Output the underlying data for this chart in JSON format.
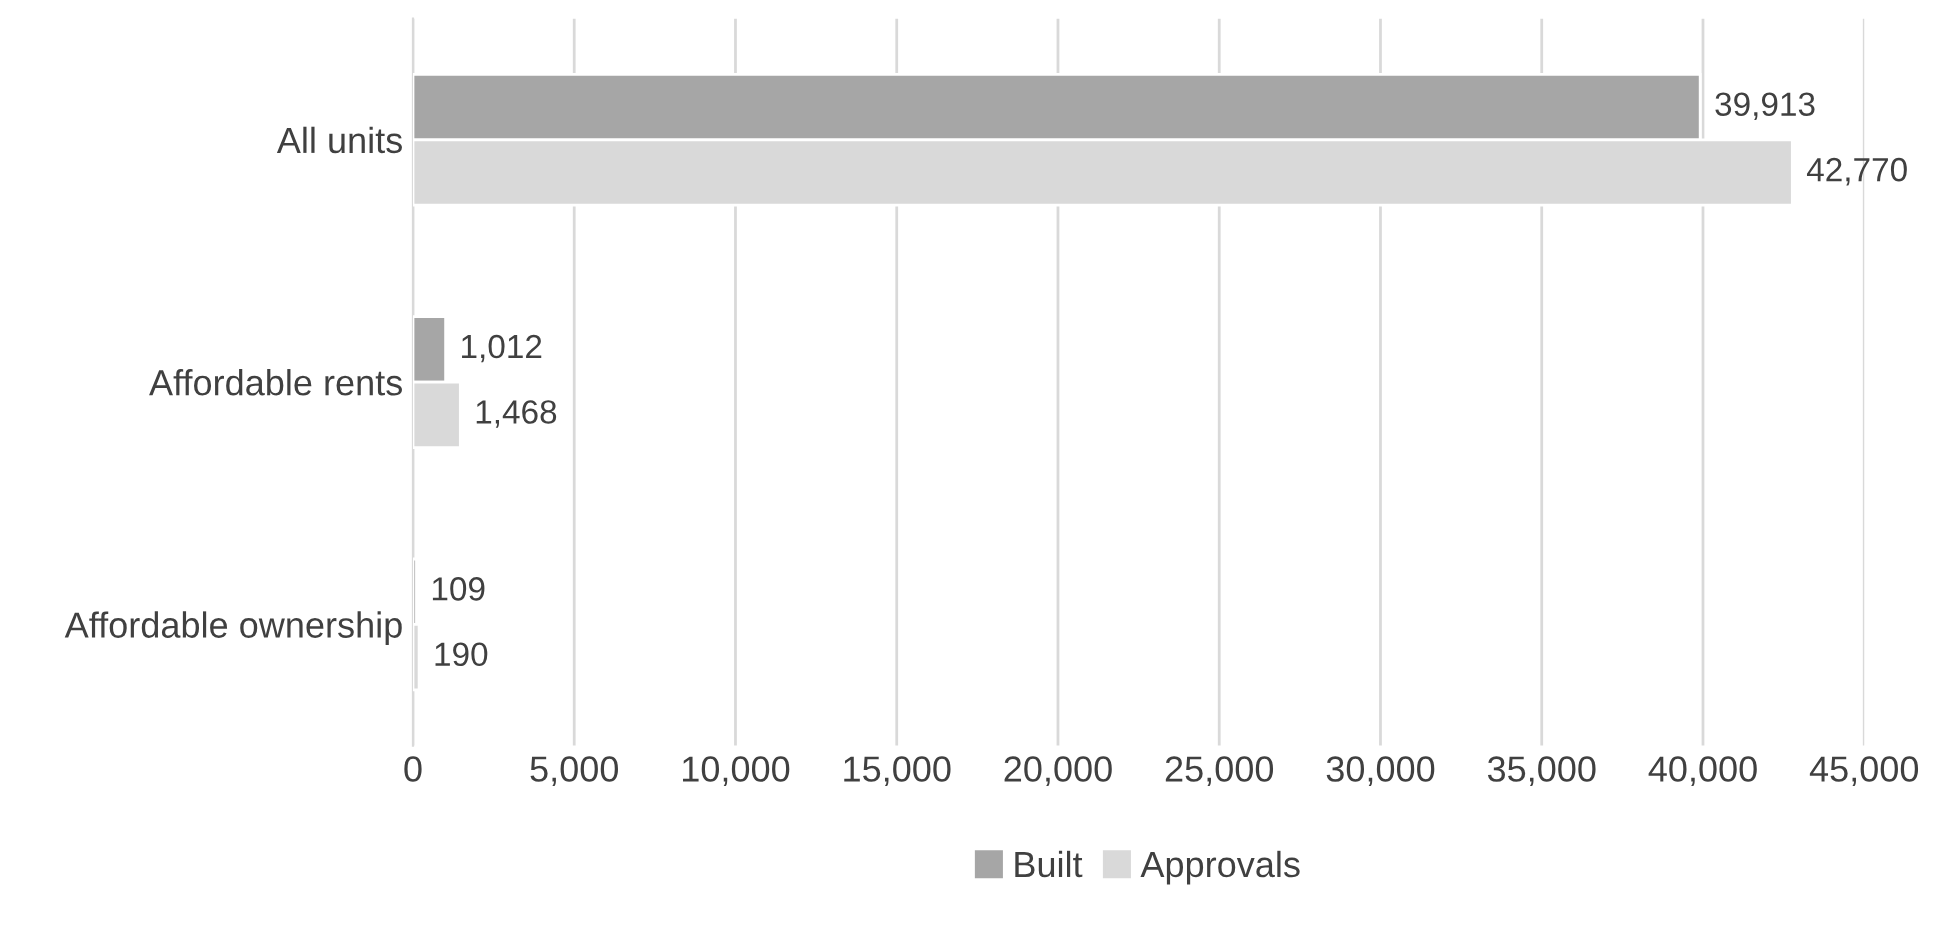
{
  "chart_data": {
    "type": "bar",
    "orientation": "horizontal",
    "categories": [
      "All units",
      "Affordable rents",
      "Affordable ownership"
    ],
    "series": [
      {
        "name": "Built",
        "color": "#a6a6a6",
        "values": [
          39913,
          1012,
          109
        ],
        "value_labels": [
          "39,913",
          "1,012",
          "109"
        ]
      },
      {
        "name": "Approvals",
        "color": "#d9d9d9",
        "values": [
          42770,
          1468,
          190
        ],
        "value_labels": [
          "42,770",
          "1,468",
          "190"
        ]
      }
    ],
    "xlim": [
      0,
      45000
    ],
    "xticks": [
      0,
      {
        "value": 5000,
        "label": "5,000"
      },
      {
        "value": 10000,
        "label": "10,000"
      },
      {
        "value": 15000,
        "label": "15,000"
      },
      {
        "value": 20000,
        "label": "20,000"
      },
      {
        "value": 25000,
        "label": "25,000"
      },
      {
        "value": 30000,
        "label": "30,000"
      },
      {
        "value": 35000,
        "label": "35,000"
      },
      {
        "value": 40000,
        "label": "40,000"
      },
      {
        "value": 45000,
        "label": "45,000"
      }
    ],
    "grid": "x",
    "legend": "bottom"
  }
}
